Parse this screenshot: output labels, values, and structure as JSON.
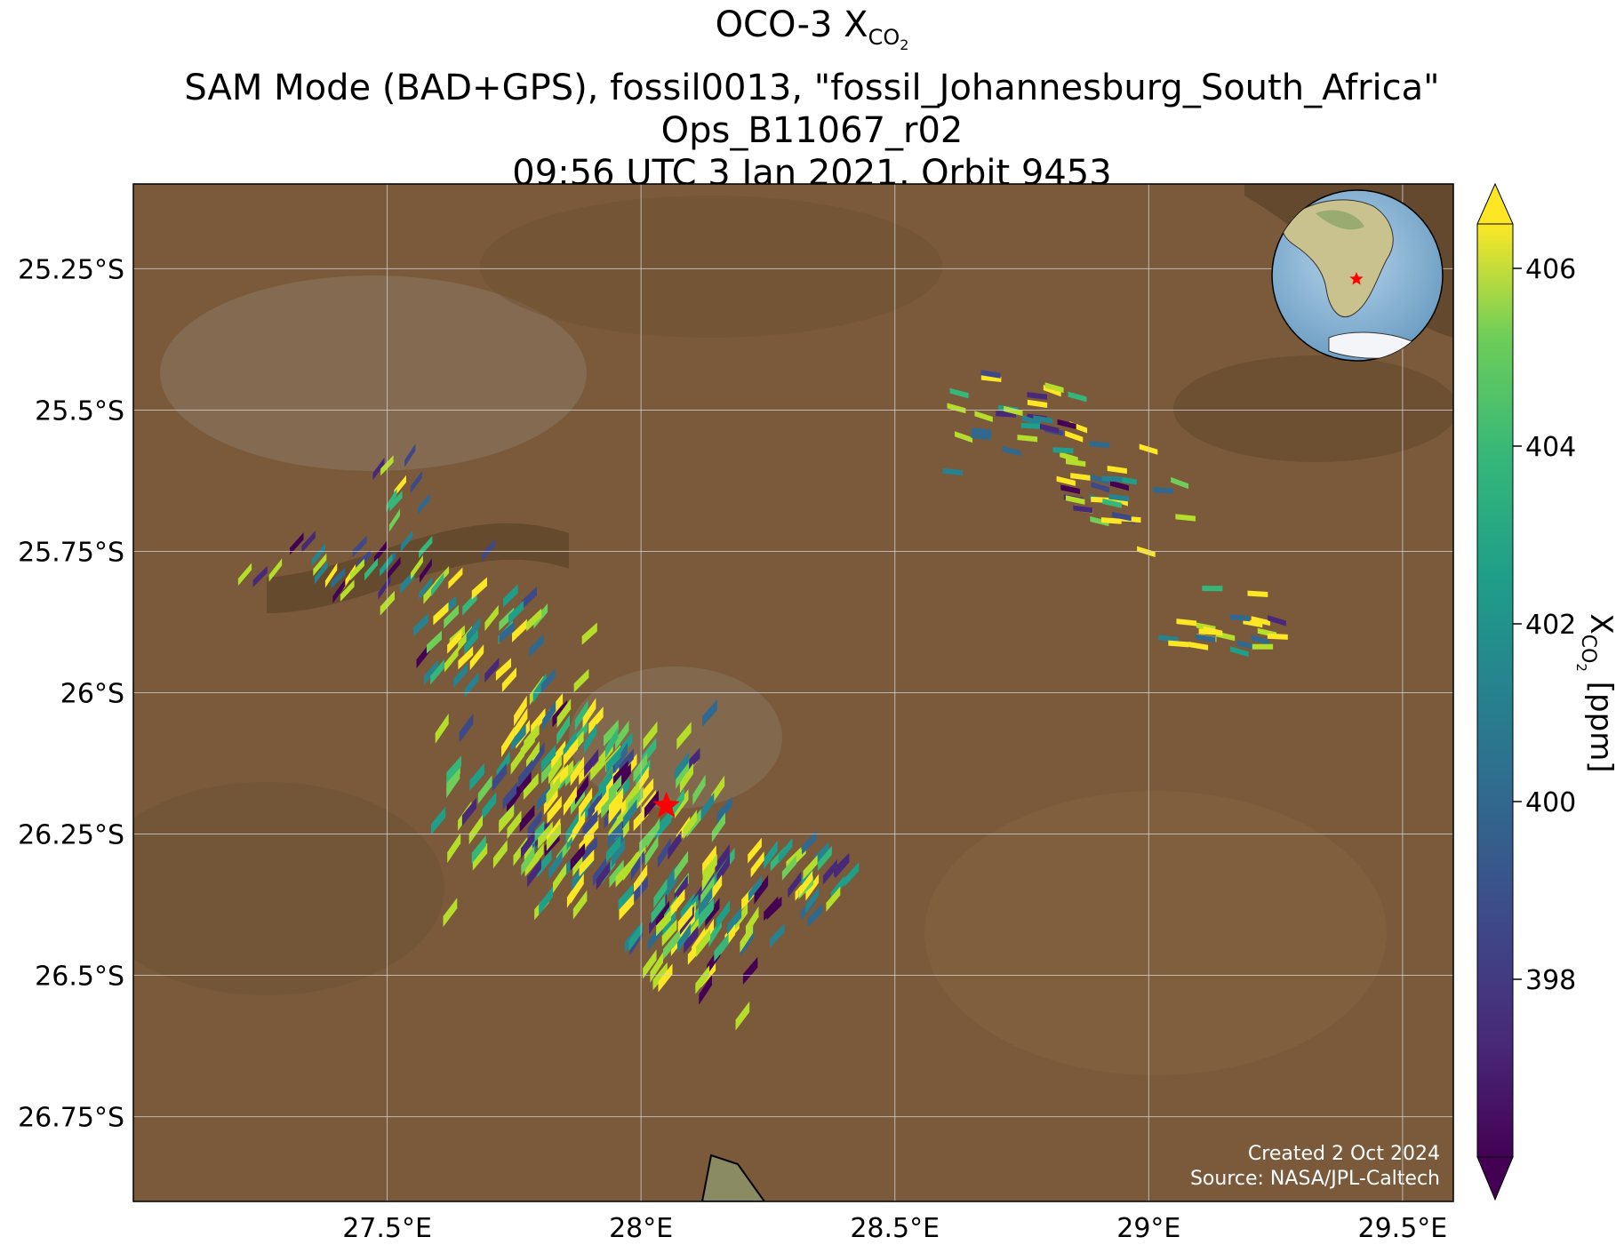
{
  "title": {
    "line1_prefix": "OCO-3 X",
    "line1_sub": "CO",
    "line1_subsub": "2",
    "line2": "SAM Mode (BAD+GPS), fossil0013, \"fossil_Johannesburg_South_Africa\"",
    "line3": "Ops_B11067_r02",
    "line4": "09:56 UTC 3 Jan 2021, Orbit 9453"
  },
  "map": {
    "lon_range": [
      27.0,
      29.6
    ],
    "lat_range": [
      -26.9,
      -25.1
    ],
    "lon_ticks": [
      {
        "value": 27.5,
        "label": "27.5°E"
      },
      {
        "value": 28.0,
        "label": "28°E"
      },
      {
        "value": 28.5,
        "label": "28.5°E"
      },
      {
        "value": 29.0,
        "label": "29°E"
      },
      {
        "value": 29.5,
        "label": "29.5°E"
      }
    ],
    "lat_ticks": [
      {
        "value": -25.25,
        "label": "25.25°S"
      },
      {
        "value": -25.5,
        "label": "25.5°S"
      },
      {
        "value": -25.75,
        "label": "25.75°S"
      },
      {
        "value": -26.0,
        "label": "26°S"
      },
      {
        "value": -26.25,
        "label": "26.25°S"
      },
      {
        "value": -26.5,
        "label": "26.5°S"
      },
      {
        "value": -26.75,
        "label": "26.75°S"
      }
    ],
    "grid": true,
    "target": {
      "lon": 28.05,
      "lat": -26.2,
      "marker": "red-star"
    },
    "background": "satellite-imagery",
    "inset": "globe-centered-on-africa-with-red-star",
    "credit_line1": "Created 2 Oct 2024",
    "credit_line2": "Source: NASA/JPL-Caltech"
  },
  "colorbar": {
    "colormap": "viridis",
    "range": [
      396,
      406.5
    ],
    "ticks": [
      398,
      400,
      402,
      404,
      406
    ],
    "label_prefix": "X",
    "label_sub": "CO",
    "label_subsub": "2",
    "label_suffix": " [ppm]",
    "extend": "both"
  },
  "colors": {
    "background_brown": "#7a5a3a",
    "grid": "#d0d0d0",
    "star": "#ff0000"
  }
}
